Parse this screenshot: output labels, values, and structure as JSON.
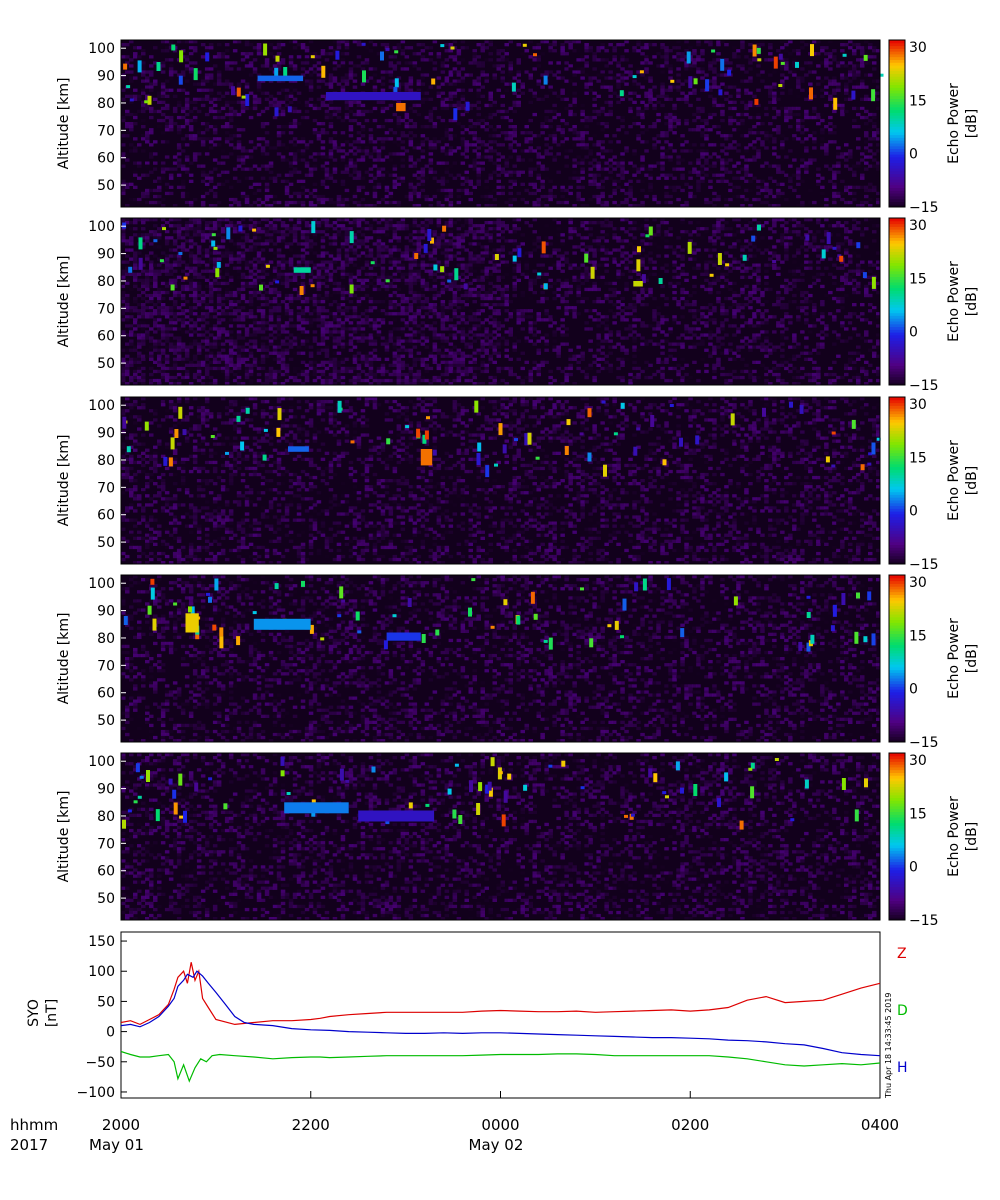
{
  "panels": [
    {
      "ylabel": "Altitude [km]",
      "yticks": [
        50,
        60,
        70,
        80,
        90,
        100
      ],
      "ylim": [
        42,
        103
      ],
      "colorbar": {
        "label_line1": "Echo Power",
        "label_line2": "[dB]",
        "ticks": [
          -15,
          0,
          15,
          30
        ],
        "range": [
          -15,
          32
        ]
      },
      "features": [
        {
          "t0": 7.2,
          "t1": 9.6,
          "a0": 88,
          "a1": 90,
          "p": 2
        },
        {
          "t0": 10.8,
          "t1": 15.8,
          "a0": 81,
          "a1": 84,
          "p": -4
        },
        {
          "t0": 14.5,
          "t1": 15.0,
          "a0": 77,
          "a1": 80,
          "p": 28
        }
      ]
    },
    {
      "ylabel": "Altitude [km]",
      "yticks": [
        50,
        60,
        70,
        80,
        90,
        100
      ],
      "ylim": [
        42,
        103
      ],
      "colorbar": {
        "label_line1": "Echo Power",
        "label_line2": "[dB]",
        "ticks": [
          -15,
          0,
          15,
          30
        ],
        "range": [
          -15,
          32
        ]
      },
      "features": [
        {
          "t0": 9.1,
          "t1": 10.0,
          "a0": 83,
          "a1": 85,
          "p": 10
        },
        {
          "t0": 27.0,
          "t1": 27.5,
          "a0": 78,
          "a1": 80,
          "p": 22
        }
      ]
    },
    {
      "ylabel": "Altitude [km]",
      "yticks": [
        50,
        60,
        70,
        80,
        90,
        100
      ],
      "ylim": [
        42,
        103
      ],
      "colorbar": {
        "label_line1": "Echo Power",
        "label_line2": "[dB]",
        "ticks": [
          -15,
          0,
          15,
          30
        ],
        "range": [
          -15,
          32
        ]
      },
      "features": [
        {
          "t0": 8.8,
          "t1": 9.9,
          "a0": 83,
          "a1": 85,
          "p": 2
        },
        {
          "t0": 15.8,
          "t1": 16.4,
          "a0": 78,
          "a1": 84,
          "p": 28
        }
      ]
    },
    {
      "ylabel": "Altitude [km]",
      "yticks": [
        50,
        60,
        70,
        80,
        90,
        100
      ],
      "ylim": [
        42,
        103
      ],
      "colorbar": {
        "label_line1": "Echo Power",
        "label_line2": "[dB]",
        "ticks": [
          -15,
          0,
          15,
          30
        ],
        "range": [
          -15,
          32
        ]
      },
      "features": [
        {
          "t0": 3.4,
          "t1": 4.1,
          "a0": 82,
          "a1": 89,
          "p": 24
        },
        {
          "t0": 7.0,
          "t1": 10.0,
          "a0": 83,
          "a1": 87,
          "p": 4
        },
        {
          "t0": 14.0,
          "t1": 15.8,
          "a0": 79,
          "a1": 82,
          "p": 0
        }
      ]
    },
    {
      "ylabel": "Altitude [km]",
      "yticks": [
        50,
        60,
        70,
        80,
        90,
        100
      ],
      "ylim": [
        42,
        103
      ],
      "colorbar": {
        "label_line1": "Echo Power",
        "label_line2": "[dB]",
        "ticks": [
          -15,
          0,
          15,
          30
        ],
        "range": [
          -15,
          32
        ]
      },
      "features": [
        {
          "t0": 8.6,
          "t1": 12.0,
          "a0": 81,
          "a1": 85,
          "p": 3
        },
        {
          "t0": 12.5,
          "t1": 16.5,
          "a0": 78,
          "a1": 82,
          "p": -4
        }
      ]
    }
  ],
  "mag": {
    "ylabel_line1": "SYO",
    "ylabel_line2": "[nT]",
    "yticks": [
      -100,
      -50,
      0,
      50,
      100,
      150
    ],
    "ylim": [
      -110,
      165
    ],
    "series": [
      {
        "name": "Z",
        "color": "#dd0000",
        "hours": [
          0,
          0.5,
          1.0,
          1.5,
          2.0,
          2.5,
          2.8,
          3.0,
          3.3,
          3.5,
          3.7,
          3.9,
          4.1,
          4.3,
          4.6,
          5.0,
          6.0,
          7.0,
          8.0,
          9.0,
          10.0,
          10.5,
          11.0,
          12.0,
          13.0,
          14.0,
          15.0,
          16.0,
          17.0,
          18.0,
          19.0,
          20.0,
          21.0,
          22.0,
          23.0,
          24.0,
          25.0,
          26.0,
          27.0,
          28.0,
          29.0,
          30.0,
          31.0,
          32.0,
          33.0,
          34.0,
          35.0,
          36.0,
          37.0,
          38.0,
          39.0,
          40.0
        ],
        "values": [
          15,
          18,
          12,
          20,
          28,
          45,
          70,
          90,
          100,
          80,
          115,
          85,
          100,
          55,
          40,
          20,
          12,
          15,
          18,
          18,
          20,
          22,
          25,
          28,
          30,
          32,
          32,
          32,
          32,
          32,
          34,
          35,
          34,
          33,
          33,
          34,
          32,
          33,
          34,
          35,
          36,
          34,
          36,
          40,
          52,
          58,
          48,
          50,
          52,
          62,
          72,
          80
        ]
      },
      {
        "name": "D",
        "color": "#00bb00",
        "hours": [
          0,
          0.5,
          1.0,
          1.5,
          2.0,
          2.5,
          2.8,
          3.0,
          3.3,
          3.6,
          3.9,
          4.2,
          4.5,
          4.8,
          5.2,
          6.0,
          7.0,
          8.0,
          9.0,
          10.0,
          10.5,
          11.0,
          12.0,
          13.0,
          14.0,
          15.0,
          16.0,
          17.0,
          18.0,
          19.0,
          20.0,
          21.0,
          22.0,
          23.0,
          24.0,
          25.0,
          26.0,
          27.0,
          28.0,
          29.0,
          30.0,
          31.0,
          32.0,
          33.0,
          34.0,
          35.0,
          36.0,
          37.0,
          38.0,
          39.0,
          40.0
        ],
        "values": [
          -33,
          -38,
          -42,
          -42,
          -40,
          -38,
          -50,
          -78,
          -55,
          -82,
          -60,
          -45,
          -50,
          -40,
          -38,
          -40,
          -42,
          -45,
          -43,
          -42,
          -42,
          -43,
          -42,
          -41,
          -40,
          -40,
          -40,
          -40,
          -40,
          -39,
          -38,
          -38,
          -38,
          -37,
          -37,
          -38,
          -40,
          -40,
          -40,
          -40,
          -40,
          -40,
          -42,
          -45,
          -50,
          -55,
          -57,
          -55,
          -53,
          -55,
          -52
        ]
      },
      {
        "name": "H",
        "color": "#0000cc",
        "hours": [
          0,
          0.5,
          1.0,
          1.5,
          2.0,
          2.5,
          2.8,
          3.0,
          3.3,
          3.5,
          3.8,
          4.0,
          4.3,
          4.6,
          5.0,
          5.5,
          6.0,
          6.5,
          7.0,
          8.0,
          9.0,
          10.0,
          11.0,
          12.0,
          13.0,
          14.0,
          15.0,
          16.0,
          17.0,
          18.0,
          19.0,
          20.0,
          21.0,
          22.0,
          23.0,
          24.0,
          25.0,
          26.0,
          27.0,
          28.0,
          29.0,
          30.0,
          31.0,
          32.0,
          33.0,
          34.0,
          35.0,
          36.0,
          37.0,
          38.0,
          39.0,
          40.0
        ],
        "values": [
          10,
          12,
          8,
          15,
          25,
          42,
          55,
          75,
          85,
          95,
          90,
          100,
          92,
          80,
          65,
          45,
          25,
          15,
          12,
          10,
          5,
          3,
          2,
          0,
          -1,
          -2,
          -3,
          -3,
          -2,
          -3,
          -2,
          -2,
          -3,
          -4,
          -5,
          -6,
          -7,
          -8,
          -9,
          -10,
          -10,
          -11,
          -12,
          -14,
          -15,
          -17,
          -20,
          -22,
          -28,
          -35,
          -38,
          -40
        ]
      }
    ]
  },
  "xaxis": {
    "row1_label": "hhmm",
    "row2_label": "2017",
    "hour_range": [
      0,
      8
    ],
    "ticks": [
      {
        "hour": 0,
        "label": "2000",
        "date": "May 01"
      },
      {
        "hour": 2,
        "label": "2200",
        "date": ""
      },
      {
        "hour": 4,
        "label": "0000",
        "date": "May 02"
      },
      {
        "hour": 6,
        "label": "0200",
        "date": ""
      },
      {
        "hour": 8,
        "label": "0400",
        "date": ""
      }
    ]
  },
  "timestamp": "Thu Apr 18 14:33:45 2019"
}
